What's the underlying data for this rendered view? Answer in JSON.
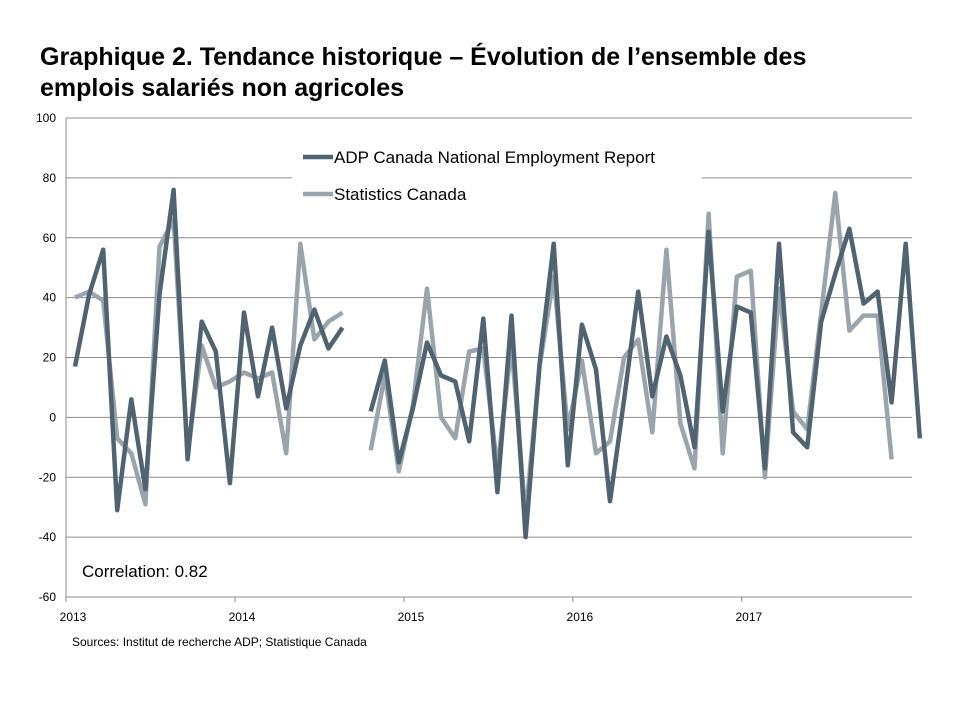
{
  "title_lines": [
    "Graphique 2. Tendance historique – Évolution de l’ensemble des",
    "emplois salariés non agricoles"
  ],
  "source": "Sources: Institut de recherche  ADP; Statistique Canada",
  "annotation": "Correlation: 0.82",
  "chart_data": {
    "type": "line",
    "title": "Graphique 2. Tendance historique – Évolution de l’ensemble des emplois salariés non agricoles",
    "xlabel": "",
    "ylabel": "",
    "ylim": [
      -60,
      100
    ],
    "yticks": [
      -60,
      -40,
      -20,
      0,
      20,
      40,
      60,
      80,
      100
    ],
    "x_tick_labels": [
      "2013",
      "2014",
      "2015",
      "2016",
      "2017"
    ],
    "x_start": "2013-01",
    "grid": true,
    "legend_position": "top-center",
    "series": [
      {
        "name": "ADP Canada National Employment Report",
        "color": "#4f6470",
        "values": [
          17,
          41,
          56,
          -31,
          6,
          -24,
          41,
          76,
          -14,
          32,
          22,
          -22,
          35,
          7,
          30,
          3,
          24,
          36,
          23,
          30,
          null,
          2,
          19,
          -15,
          3,
          25,
          14,
          12,
          -8,
          33,
          -25,
          34,
          -40,
          18,
          58,
          -16,
          31,
          16,
          -28,
          6,
          42,
          7,
          27,
          14,
          -10,
          62,
          2,
          37,
          35,
          -17,
          58,
          -5,
          -10,
          32,
          48,
          63,
          38,
          42,
          5,
          58,
          -7
        ]
      },
      {
        "name": "Statistics Canada",
        "color": "#9aa5ab",
        "values": [
          40,
          42,
          39,
          -7,
          -12,
          -29,
          57,
          66,
          -12,
          24,
          10,
          12,
          15,
          13,
          15,
          -12,
          58,
          26,
          32,
          35,
          null,
          -11,
          14,
          -18,
          4,
          43,
          0,
          -7,
          22,
          23,
          -17,
          24,
          -33,
          17,
          47,
          -4,
          19,
          -12,
          -8,
          20,
          26,
          -5,
          56,
          -2,
          -17,
          68,
          -12,
          47,
          49,
          -20,
          43,
          2,
          -4,
          35,
          75,
          29,
          34,
          34,
          -14
        ]
      }
    ]
  }
}
